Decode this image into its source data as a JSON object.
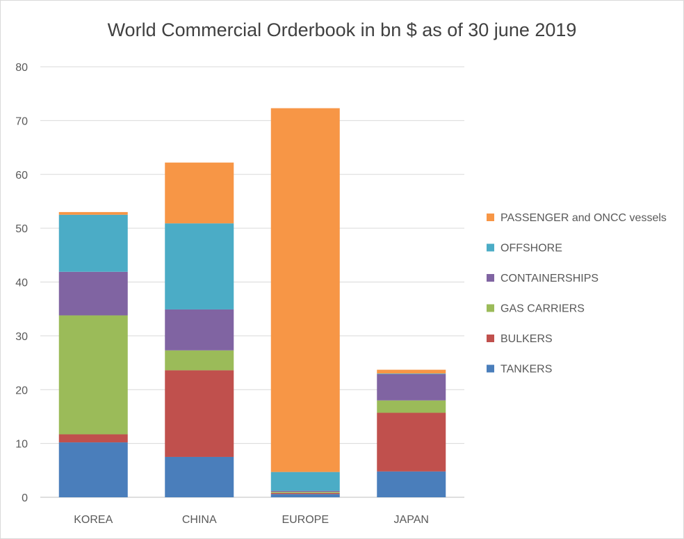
{
  "chart_data": {
    "type": "bar",
    "stacked": true,
    "title": "World Commercial Orderbook in bn $  as of 30 june 2019",
    "categories": [
      "KOREA",
      "CHINA",
      "EUROPE",
      "JAPAN"
    ],
    "ylim": [
      0,
      80
    ],
    "yticks": [
      "0",
      "10",
      "20",
      "30",
      "40",
      "50",
      "60",
      "70",
      "80"
    ],
    "grid": true,
    "legend_position": "right",
    "series": [
      {
        "name": "TANKERS",
        "color": "#4a7ebb",
        "values": [
          10.2,
          7.5,
          0.6,
          4.8
        ]
      },
      {
        "name": "BULKERS",
        "color": "#c0504d",
        "values": [
          1.5,
          16.1,
          0.2,
          10.9
        ]
      },
      {
        "name": "GAS CARRIERS",
        "color": "#9bbb59",
        "values": [
          22.1,
          3.7,
          0.2,
          2.3
        ]
      },
      {
        "name": "CONTAINERSHIPS",
        "color": "#8064a2",
        "values": [
          8.1,
          7.6,
          0.2,
          4.9
        ]
      },
      {
        "name": "OFFSHORE",
        "color": "#4bacc6",
        "values": [
          10.6,
          16.0,
          3.5,
          0.1
        ]
      },
      {
        "name": "PASSENGER and ONCC vessels",
        "color": "#f79646",
        "values": [
          0.5,
          11.3,
          67.6,
          0.7
        ]
      }
    ]
  }
}
